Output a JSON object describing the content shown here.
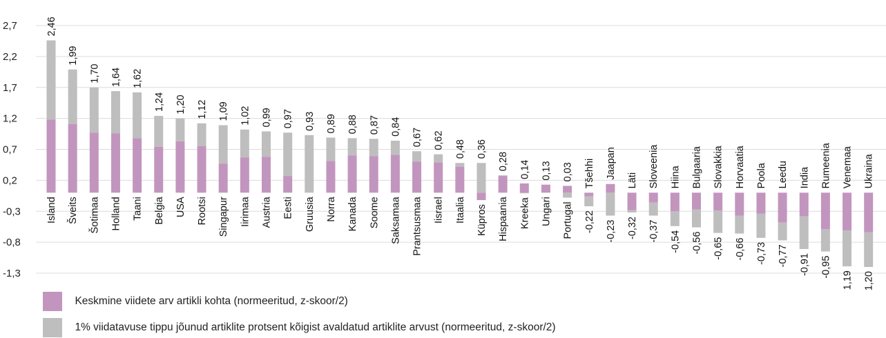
{
  "chart_data": {
    "type": "bar",
    "stacked": true,
    "ylim": [
      -1.3,
      2.7
    ],
    "yticks": [
      2.7,
      2.2,
      1.7,
      1.2,
      0.7,
      0.2,
      -0.3,
      -0.8,
      -1.3
    ],
    "ytick_labels": [
      "2,7",
      "2,2",
      "1,7",
      "1,2",
      "0,7",
      "0,2",
      "-0,3",
      "-0,8",
      "-1,3"
    ],
    "grid": true,
    "legend_position": "bottom-left",
    "categories": [
      "Island",
      "Šveits",
      "Šotimaa",
      "Holland",
      "Taani",
      "Belgia",
      "USA",
      "Rootsi",
      "Singapur",
      "Iirimaa",
      "Austria",
      "Eesti",
      "Gruusia",
      "Norra",
      "Kanada",
      "Soome",
      "Saksamaa",
      "Prantsusmaa",
      "Iisrael",
      "Itaalia",
      "Küpros",
      "Hispaania",
      "Kreeka",
      "Ungari",
      "Portugal",
      "Tšehhi",
      "Jaapan",
      "Läti",
      "Sloveenia",
      "Hiina",
      "Bulgaaria",
      "Slovakkia",
      "Horvaatia",
      "Poola",
      "Leedu",
      "India",
      "Rumeenia",
      "Venemaa",
      "Ukraina"
    ],
    "totals": [
      2.46,
      1.99,
      1.7,
      1.64,
      1.62,
      1.24,
      1.2,
      1.12,
      1.09,
      1.02,
      0.99,
      0.97,
      0.93,
      0.89,
      0.88,
      0.87,
      0.84,
      0.67,
      0.62,
      0.48,
      0.36,
      0.28,
      0.14,
      0.13,
      0.03,
      -0.22,
      -0.23,
      -0.32,
      -0.37,
      -0.54,
      -0.56,
      -0.65,
      -0.66,
      -0.73,
      -0.77,
      -0.91,
      -0.95,
      -1.19,
      -1.2
    ],
    "total_labels": [
      "2,46",
      "1,99",
      "1,70",
      "1,64",
      "1,62",
      "1,24",
      "1,20",
      "1,12",
      "1,09",
      "1,02",
      "0,99",
      "0,97",
      "0,93",
      "0,89",
      "0,88",
      "0,87",
      "0,84",
      "0,67",
      "0,62",
      "0,48",
      "0,36",
      "0,28",
      "0,14",
      "0,13",
      "0,03",
      "-0,22",
      "-0,23",
      "-0,32",
      "-0,37",
      "-0,54",
      "-0,56",
      "-0,65",
      "-0,66",
      "-0,73",
      "-0,77",
      "-0,91",
      "-0,95",
      "-1,19",
      "-1,20"
    ],
    "series": [
      {
        "name": "Keskmine viidete arv artikli kohta (normeeritud, z-skoor/2)",
        "color": "#c295be",
        "values": [
          1.18,
          1.11,
          0.97,
          0.96,
          0.88,
          0.74,
          0.83,
          0.75,
          0.47,
          0.57,
          0.58,
          0.27,
          0.0,
          0.51,
          0.6,
          0.59,
          0.61,
          0.5,
          0.49,
          0.42,
          -0.12,
          0.27,
          0.15,
          0.13,
          0.11,
          -0.06,
          0.14,
          -0.28,
          -0.16,
          -0.3,
          -0.27,
          -0.29,
          -0.37,
          -0.34,
          -0.48,
          -0.38,
          -0.59,
          -0.61,
          -0.64
        ]
      },
      {
        "name": "1% viidatavuse tippu jõunud artiklite protsent kõigist avaldatud artiklite arvust (normeeritud, z-skoor/2)",
        "color": "#bebebe",
        "values": [
          1.28,
          0.88,
          0.73,
          0.68,
          0.74,
          0.5,
          0.37,
          0.37,
          0.62,
          0.45,
          0.41,
          0.7,
          0.93,
          0.38,
          0.28,
          0.28,
          0.23,
          0.17,
          0.13,
          0.06,
          0.48,
          0.01,
          -0.01,
          0.0,
          -0.08,
          -0.16,
          -0.37,
          -0.04,
          -0.21,
          -0.24,
          -0.29,
          -0.36,
          -0.29,
          -0.39,
          -0.29,
          -0.53,
          -0.36,
          -0.58,
          -0.56
        ]
      }
    ]
  }
}
